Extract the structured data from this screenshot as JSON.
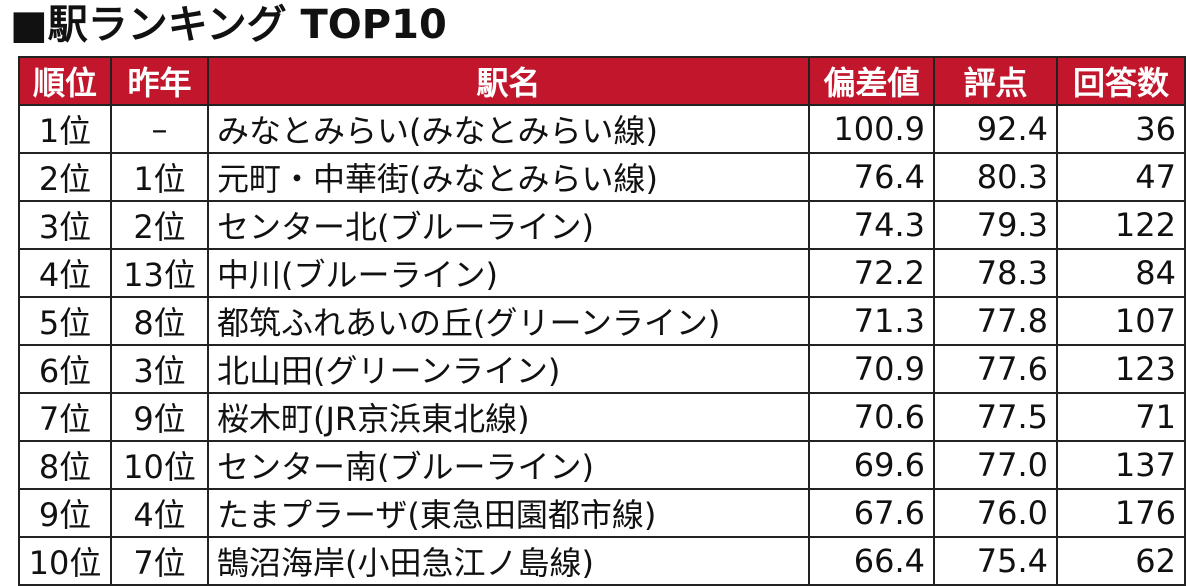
{
  "header": {
    "title": "■駅ランキング TOP10"
  },
  "table": {
    "columns": [
      "順位",
      "昨年",
      "駅名",
      "偏差値",
      "評点",
      "回答数"
    ],
    "rows": [
      [
        "1位",
        "–",
        "みなとみらい(みなとみらい線)",
        "100.9",
        "92.4",
        "36"
      ],
      [
        "2位",
        "1位",
        "元町・中華街(みなとみらい線)",
        "76.4",
        "80.3",
        "47"
      ],
      [
        "3位",
        "2位",
        "センター北(ブルーライン)",
        "74.3",
        "79.3",
        "122"
      ],
      [
        "4位",
        "13位",
        "中川(ブルーライン)",
        "72.2",
        "78.3",
        "84"
      ],
      [
        "5位",
        "8位",
        "都筑ふれあいの丘(グリーンライン)",
        "71.3",
        "77.8",
        "107"
      ],
      [
        "6位",
        "3位",
        "北山田(グリーンライン)",
        "70.9",
        "77.6",
        "123"
      ],
      [
        "7位",
        "9位",
        "桜木町(JR京浜東北線)",
        "70.6",
        "77.5",
        "71"
      ],
      [
        "8位",
        "10位",
        "センター南(ブルーライン)",
        "69.6",
        "77.0",
        "137"
      ],
      [
        "9位",
        "4位",
        "たまプラーザ(東急田園都市線)",
        "67.6",
        "76.0",
        "176"
      ],
      [
        "10位",
        "7位",
        "鵠沼海岸(小田急江ノ島線)",
        "66.4",
        "75.4",
        "62"
      ]
    ]
  }
}
